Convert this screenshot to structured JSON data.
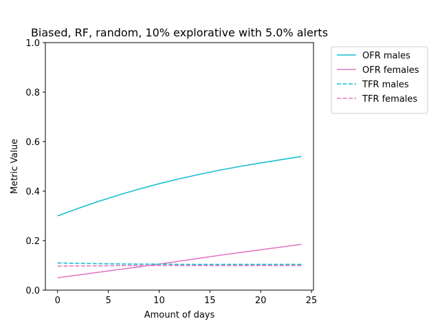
{
  "chart_data": {
    "type": "line",
    "title": "Biased, RF, random, 10% explorative with 5.0% alerts",
    "xlabel": "Amount of days",
    "ylabel": "Metric Value",
    "xlim": [
      -1.2,
      25.2
    ],
    "ylim": [
      0,
      1
    ],
    "xticks": [
      0,
      5,
      10,
      15,
      20,
      25
    ],
    "yticks": [
      0.0,
      0.2,
      0.4,
      0.6,
      0.8,
      1.0
    ],
    "xtick_labels": [
      "0",
      "5",
      "10",
      "15",
      "20",
      "25"
    ],
    "ytick_labels": [
      "0.0",
      "0.2",
      "0.4",
      "0.6",
      "0.8",
      "1.0"
    ],
    "grid": false,
    "legend_position": "outside-top-right",
    "x": [
      0,
      2,
      4,
      6,
      8,
      10,
      12,
      14,
      16,
      18,
      20,
      22,
      24
    ],
    "series": [
      {
        "name": "OFR males",
        "style": "solid",
        "color": "#17becf",
        "values": [
          0.3,
          0.33,
          0.358,
          0.384,
          0.408,
          0.43,
          0.45,
          0.468,
          0.485,
          0.5,
          0.514,
          0.527,
          0.54
        ]
      },
      {
        "name": "OFR females",
        "style": "solid",
        "color": "#e377c2",
        "values": [
          0.05,
          0.061,
          0.072,
          0.083,
          0.094,
          0.105,
          0.117,
          0.129,
          0.141,
          0.152,
          0.163,
          0.174,
          0.185
        ]
      },
      {
        "name": "TFR males",
        "style": "dashed",
        "color": "#17becf",
        "values": [
          0.11,
          0.108,
          0.107,
          0.106,
          0.105,
          0.105,
          0.104,
          0.104,
          0.104,
          0.104,
          0.104,
          0.104,
          0.104
        ]
      },
      {
        "name": "TFR females",
        "style": "dashed",
        "color": "#e377c2",
        "values": [
          0.097,
          0.098,
          0.098,
          0.099,
          0.099,
          0.099,
          0.099,
          0.099,
          0.099,
          0.099,
          0.099,
          0.099,
          0.099
        ]
      }
    ]
  }
}
